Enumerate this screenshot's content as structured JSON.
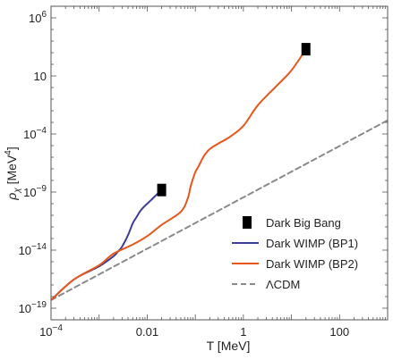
{
  "chart_data": {
    "type": "line",
    "title": "",
    "x_scale": "log",
    "y_scale": "log",
    "xlim": [
      0.0001,
      1000
    ],
    "ylim": [
      1e-20,
      10000000.0
    ],
    "xlabel": "T [MeV]",
    "ylabel_main": "ρ",
    "ylabel_sub": "χ",
    "ylabel_unit": "[MeV",
    "ylabel_exp": "4",
    "ylabel_close": "]",
    "x_ticks": [
      {
        "value": 0.0001,
        "base": "10",
        "exp": "−4",
        "text": ""
      },
      {
        "value": 0.01,
        "base": "",
        "exp": "",
        "text": "0.01"
      },
      {
        "value": 1,
        "base": "",
        "exp": "",
        "text": "1"
      },
      {
        "value": 100,
        "base": "",
        "exp": "",
        "text": "100"
      }
    ],
    "y_ticks": [
      {
        "value": 1e-19,
        "base": "10",
        "exp": "−19",
        "text": ""
      },
      {
        "value": 1e-14,
        "base": "10",
        "exp": "−14",
        "text": ""
      },
      {
        "value": 1e-09,
        "base": "10",
        "exp": "−9",
        "text": ""
      },
      {
        "value": 0.0001,
        "base": "10",
        "exp": "−4",
        "text": ""
      },
      {
        "value": 10,
        "base": "",
        "exp": "",
        "text": "10"
      },
      {
        "value": 1000000,
        "base": "10",
        "exp": "6",
        "text": ""
      }
    ],
    "series": [
      {
        "name": "Dark WIMP (BP1)",
        "color": "#3b3f95",
        "style": "solid",
        "x": [
          0.0001,
          0.0003,
          0.001,
          0.002,
          0.0025,
          0.003,
          0.004,
          0.005,
          0.006,
          0.007,
          0.008,
          0.01,
          0.012,
          0.015,
          0.02
        ],
        "y": [
          5e-19,
          3e-17,
          4e-16,
          3e-15,
          8e-15,
          2e-14,
          2e-13,
          2e-12,
          7e-12,
          2e-11,
          4e-11,
          1e-10,
          2e-10,
          5e-10,
          1.5e-09
        ]
      },
      {
        "name": "Dark WIMP (BP2)",
        "color": "#e8561c",
        "style": "solid",
        "x": [
          0.0001,
          0.0003,
          0.001,
          0.002,
          0.005,
          0.01,
          0.02,
          0.05,
          0.07,
          0.08,
          0.1,
          0.12,
          0.15,
          0.2,
          0.3,
          0.5,
          1,
          2,
          5,
          10,
          20
        ],
        "y": [
          5e-19,
          3e-17,
          5e-16,
          5e-15,
          3e-14,
          1.6e-13,
          1.5e-12,
          2e-11,
          3e-10,
          3e-09,
          5e-08,
          2e-07,
          1.2e-06,
          5e-06,
          1.5e-05,
          5e-05,
          0.0005,
          0.03,
          1.5,
          30,
          2000
        ]
      },
      {
        "name": "ΛCDM",
        "color": "#8a8a8a",
        "style": "dashed",
        "x": [
          0.0001,
          1000
        ],
        "y": [
          5e-19,
          0.0015
        ]
      }
    ],
    "markers": {
      "name": "Dark Big Bang",
      "color": "#000000",
      "points": [
        {
          "x": 0.02,
          "y": 1.5e-09
        },
        {
          "x": 20,
          "y": 2000
        }
      ]
    },
    "legend_position": "bottom-right",
    "grid": false
  }
}
